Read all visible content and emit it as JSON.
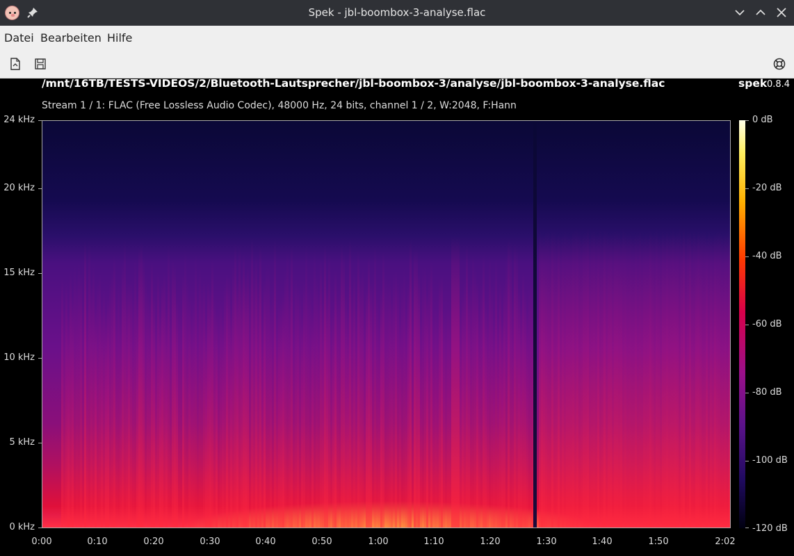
{
  "window": {
    "title": "Spek - jbl-boombox-3-analyse.flac"
  },
  "menu": {
    "items": [
      "Datei",
      "Bearbeiten",
      "Hilfe"
    ]
  },
  "toolbar": {
    "icons": [
      "open-file-icon",
      "save-icon",
      "help-lifebuoy-icon"
    ]
  },
  "header": {
    "file_path": "/mnt/16TB/TESTS-VIDEOS/2/Bluetooth-Lautsprecher/jbl-boombox-3/analyse/jbl-boombox-3-analyse.flac",
    "app_name": "spek",
    "app_version": "0.8.4",
    "stream_info": "Stream 1 / 1: FLAC (Free Lossless Audio Codec), 48000 Hz, 24 bits, channel 1 / 2, W:2048, F:Hann"
  },
  "axes": {
    "y_labels": [
      "24 kHz",
      "20 kHz",
      "15 kHz",
      "10 kHz",
      "5 kHz",
      "0 kHz"
    ],
    "x_labels": [
      "0:00",
      "0:10",
      "0:20",
      "0:30",
      "0:40",
      "0:50",
      "1:00",
      "1:10",
      "1:20",
      "1:30",
      "1:40",
      "1:50",
      "2:02"
    ],
    "db_labels": [
      "0 dB",
      "-20 dB",
      "-40 dB",
      "-60 dB",
      "-80 dB",
      "-100 dB",
      "-120 dB"
    ]
  },
  "colors": {
    "titlebar": "#2f3136",
    "menubar": "#efefef",
    "background": "#000000"
  }
}
